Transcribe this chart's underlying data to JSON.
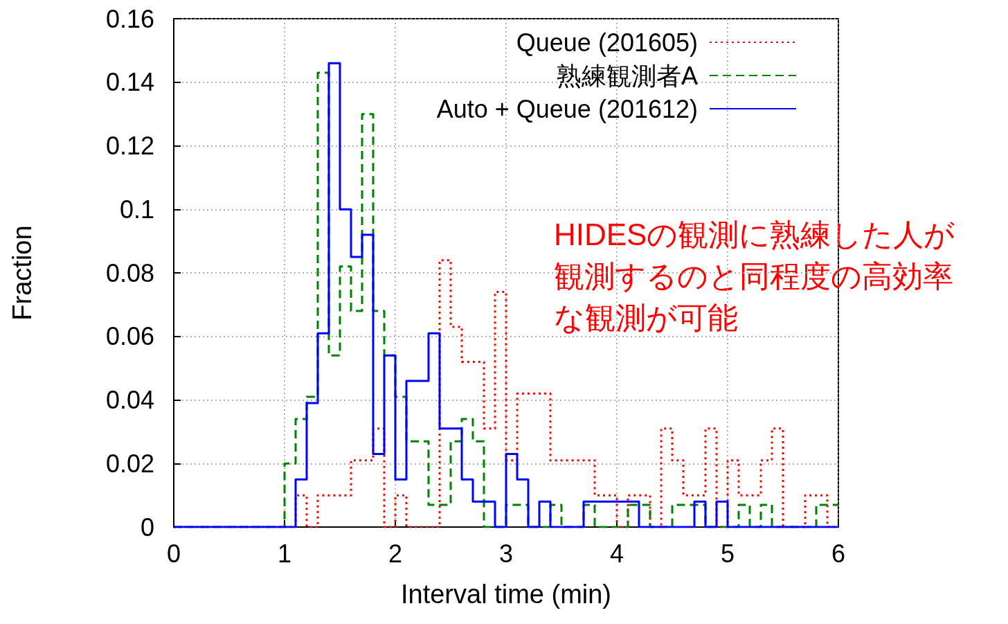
{
  "chart_data": {
    "type": "histogram",
    "xlabel": "Interval time (min)",
    "ylabel": "Fraction",
    "bins": [
      0,
      0.1,
      0.2,
      0.3,
      0.4,
      0.5,
      0.6,
      0.7,
      0.8,
      0.9,
      1,
      1.1,
      1.2,
      1.3,
      1.4,
      1.5,
      1.6,
      1.7,
      1.8,
      1.9,
      2,
      2.1,
      2.2,
      2.3,
      2.4,
      2.5,
      2.6,
      2.7,
      2.8,
      2.9,
      3,
      3.1,
      3.2,
      3.3,
      3.4,
      3.5,
      3.6,
      3.7,
      3.8,
      3.9,
      4,
      4.1,
      4.2,
      4.3,
      4.4,
      4.5,
      4.6,
      4.7,
      4.8,
      4.9,
      5,
      5.1,
      5.2,
      5.3,
      5.4,
      5.5,
      5.6,
      5.7,
      5.8,
      5.9,
      6
    ],
    "series": [
      {
        "name": "Queue (201605)",
        "color": "#ff0000",
        "line_style": "dotted",
        "values": [
          0,
          0,
          0,
          0,
          0,
          0,
          0,
          0,
          0,
          0,
          0,
          0.01,
          0,
          0.01,
          0.01,
          0.01,
          0.021,
          0.021,
          0.031,
          0,
          0.01,
          0,
          0,
          0,
          0.084,
          0.063,
          0.052,
          0.052,
          0.031,
          0.074,
          0.021,
          0.042,
          0.042,
          0.042,
          0.021,
          0.021,
          0.021,
          0.021,
          0.01,
          0.01,
          0,
          0.01,
          0.01,
          0,
          0.031,
          0.021,
          0.01,
          0.01,
          0.031,
          0,
          0.021,
          0.01,
          0.01,
          0.021,
          0.031,
          0,
          0,
          0.01,
          0.01,
          0
        ]
      },
      {
        "name": "熟練観測者A",
        "color": "#008000",
        "line_style": "dashed",
        "values": [
          0,
          0,
          0,
          0,
          0,
          0,
          0,
          0,
          0,
          0,
          0.02,
          0.034,
          0.041,
          0.143,
          0.054,
          0.082,
          0.068,
          0.13,
          0.068,
          0.054,
          0.041,
          0.027,
          0.027,
          0.007,
          0.007,
          0.027,
          0.034,
          0.027,
          0,
          0,
          0.007,
          0.007,
          0,
          0,
          0.007,
          0,
          0,
          0.007,
          0,
          0,
          0,
          0.007,
          0.007,
          0,
          0,
          0.007,
          0.007,
          0.007,
          0,
          0,
          0,
          0.007,
          0,
          0.007,
          0,
          0,
          0,
          0,
          0.007,
          0.007
        ]
      },
      {
        "name": "Auto + Queue (201612)",
        "color": "#0000ff",
        "line_style": "solid",
        "values": [
          0,
          0,
          0,
          0,
          0,
          0,
          0,
          0,
          0,
          0,
          0,
          0.015,
          0.039,
          0.061,
          0.146,
          0.1,
          0.085,
          0.092,
          0.023,
          0.054,
          0.015,
          0.046,
          0.046,
          0.061,
          0.031,
          0.031,
          0.015,
          0.008,
          0.008,
          0,
          0.023,
          0.015,
          0,
          0.008,
          0,
          0,
          0,
          0.008,
          0.008,
          0.008,
          0.008,
          0.008,
          0,
          0,
          0,
          0,
          0,
          0.008,
          0,
          0.008,
          0,
          0,
          0,
          0,
          0,
          0,
          0,
          0,
          0,
          0
        ]
      }
    ],
    "xlim": [
      0,
      6
    ],
    "xticks": [
      0,
      1,
      2,
      3,
      4,
      5,
      6
    ],
    "ylim": [
      0,
      0.16
    ],
    "yticks": [
      0,
      0.02,
      0.04,
      0.06,
      0.08,
      0.1,
      0.12,
      0.14,
      0.16
    ],
    "grid": true,
    "legend": "top right",
    "annotations": [
      "HIDESの観測に熟練した人が観測するのと同程度の高効率な観測が可能"
    ]
  }
}
